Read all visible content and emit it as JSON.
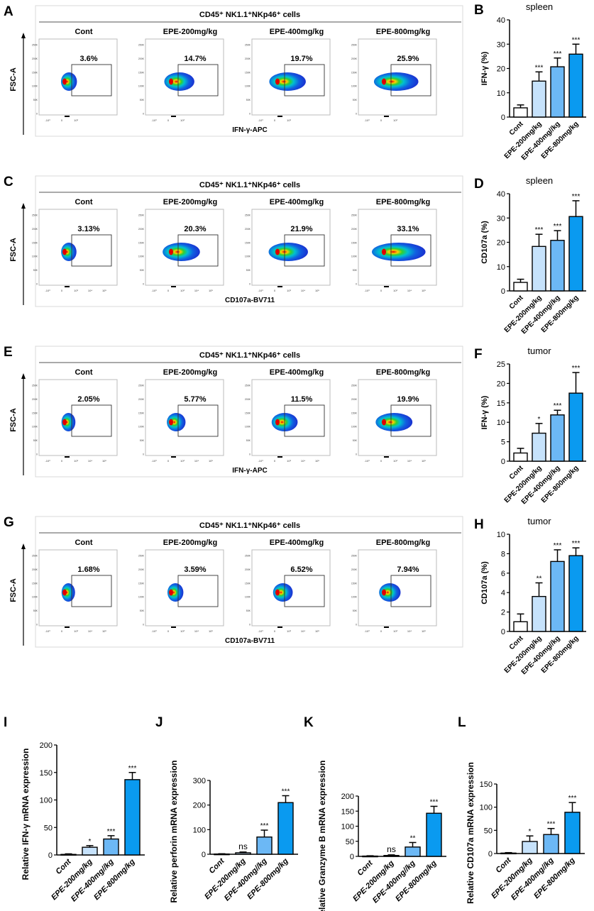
{
  "colors": {
    "cont": "#ffffff",
    "epe200": "#c6e2fb",
    "epe400": "#6cb8f5",
    "epe800": "#0a9af0"
  },
  "flow_panels": [
    {
      "letter": "A",
      "header": "CD45⁺ NK1.1⁺NKp46⁺ cells",
      "ylabel": "FSC-A",
      "xlabel": "IFN-γ-APC",
      "plots": [
        {
          "title": "Cont",
          "gate": "3.6%"
        },
        {
          "title": "EPE-200mg/kg",
          "gate": "14.7%"
        },
        {
          "title": "EPE-400mg/kg",
          "gate": "19.7%"
        },
        {
          "title": "EPE-800mg/kg",
          "gate": "25.9%"
        }
      ],
      "yticks": [
        "250K",
        "200K",
        "150K",
        "100K",
        "50K",
        "0"
      ],
      "xticks": [
        "-10³",
        "0",
        "10³"
      ]
    },
    {
      "letter": "C",
      "header": "CD45⁺ NK1.1⁺NKp46⁺ cells",
      "ylabel": "FSC-A",
      "xlabel": "CD107a-BV711",
      "plots": [
        {
          "title": "Cont",
          "gate": "3.13%"
        },
        {
          "title": "EPE-200mg/kg",
          "gate": "20.3%"
        },
        {
          "title": "EPE-400mg/kg",
          "gate": "21.9%"
        },
        {
          "title": "EPE-800mg/kg",
          "gate": "33.1%"
        }
      ],
      "yticks": [
        "250K",
        "200K",
        "150K",
        "100K",
        "50K",
        "0"
      ],
      "xticks": [
        "-10³",
        "0",
        "10³",
        "10⁴",
        "10⁵"
      ]
    },
    {
      "letter": "E",
      "header": "CD45⁺ NK1.1⁺NKp46⁺ cells",
      "ylabel": "FSC-A",
      "xlabel": "IFN-γ-APC",
      "plots": [
        {
          "title": "Cont",
          "gate": "2.05%"
        },
        {
          "title": "EPE-200mg/kg",
          "gate": "5.77%"
        },
        {
          "title": "EPE-400mg/kg",
          "gate": "11.5%"
        },
        {
          "title": "EPE-800mg/kg",
          "gate": "19.9%"
        }
      ],
      "yticks": [
        "250K",
        "200K",
        "150K",
        "100K",
        "50K",
        "0"
      ],
      "xticks": [
        "-10³",
        "0",
        "10³",
        "10⁴",
        "10⁵"
      ]
    },
    {
      "letter": "G",
      "header": "CD45⁺ NK1.1⁺NKp46⁺ cells",
      "ylabel": "FSC-A",
      "xlabel": "CD107a-BV711",
      "plots": [
        {
          "title": "Cont",
          "gate": "1.68%"
        },
        {
          "title": "EPE-200mg/kg",
          "gate": "3.59%"
        },
        {
          "title": "EPE-400mg/kg",
          "gate": "6.52%"
        },
        {
          "title": "EPE-800mg/kg",
          "gate": "7.94%"
        }
      ],
      "yticks": [
        "250K",
        "200K",
        "150K",
        "100K",
        "50K",
        "0"
      ],
      "xticks": [
        "-10³",
        "0",
        "10³",
        "10⁴",
        "10⁵"
      ]
    }
  ],
  "chart_data": [
    {
      "id": "B",
      "letter": "B",
      "type": "bar",
      "title": "spleen",
      "ylabel": "IFN-γ (%)",
      "ylim": [
        0,
        40
      ],
      "yticks": [
        0,
        10,
        20,
        30,
        40
      ],
      "categories": [
        "Cont",
        "EPE-200mg/kg",
        "EPE-400mg//kg",
        "EPE-800mg/kg"
      ],
      "values": [
        3.8,
        14.8,
        20.7,
        25.9
      ],
      "errors": [
        1.2,
        3.8,
        3.6,
        4.1
      ],
      "significance": [
        "",
        "***",
        "***",
        "***"
      ]
    },
    {
      "id": "D",
      "letter": "D",
      "type": "bar",
      "title": "spleen",
      "ylabel": "CD107a (%)",
      "ylim": [
        0,
        40
      ],
      "yticks": [
        0,
        10,
        20,
        30,
        40
      ],
      "categories": [
        "Cont",
        "EPE-200mg/kg",
        "EPE-400mg//kg",
        "EPE-800mg/kg"
      ],
      "values": [
        3.5,
        18.3,
        20.8,
        30.6
      ],
      "errors": [
        1.3,
        5.0,
        4.0,
        6.5
      ],
      "significance": [
        "",
        "***",
        "***",
        "***"
      ]
    },
    {
      "id": "F",
      "letter": "F",
      "type": "bar",
      "title": "tumor",
      "ylabel": "IFN-γ (%)",
      "ylim": [
        0,
        25
      ],
      "yticks": [
        0,
        5,
        10,
        15,
        20,
        25
      ],
      "categories": [
        "Cont",
        "EPE-200mg/kg",
        "EPE-400mg//kg",
        "EPE-800mg/kg"
      ],
      "values": [
        2.1,
        7.2,
        11.9,
        17.5
      ],
      "errors": [
        1.2,
        2.5,
        1.2,
        5.3
      ],
      "significance": [
        "",
        "*",
        "***",
        "***"
      ]
    },
    {
      "id": "H",
      "letter": "H",
      "type": "bar",
      "title": "tumor",
      "ylabel": "CD107a (%)",
      "ylim": [
        0,
        10
      ],
      "yticks": [
        0,
        2,
        4,
        6,
        8,
        10
      ],
      "categories": [
        "Cont",
        "EPE-200mg/kg",
        "EPE-400mg//kg",
        "EPE-800mg/kg"
      ],
      "values": [
        1.0,
        3.6,
        7.2,
        7.8
      ],
      "errors": [
        0.8,
        1.4,
        1.2,
        0.8
      ],
      "significance": [
        "",
        "**",
        "***",
        "***"
      ]
    },
    {
      "id": "I",
      "letter": "I",
      "type": "bar",
      "title": "",
      "ylabel": "Relative IFN-γ mRNA expression",
      "ylim": [
        0,
        200
      ],
      "yticks": [
        0,
        50,
        100,
        150,
        200
      ],
      "categories": [
        "Cont",
        "EPE-200mg/kg",
        "EPE-400mg//kg",
        "EPE-800mg/kg"
      ],
      "values": [
        1,
        14,
        29,
        137
      ],
      "errors": [
        1,
        3,
        6,
        13
      ],
      "significance": [
        "",
        "*",
        "***",
        "***"
      ]
    },
    {
      "id": "J",
      "letter": "J",
      "type": "bar",
      "title": "",
      "ylabel": "Relative perforin mRNA expression",
      "ylim": [
        0,
        300
      ],
      "yticks": [
        0,
        100,
        200,
        300
      ],
      "categories": [
        "Cont",
        "EPE-200mg/kg",
        "EPE-400mg//kg",
        "EPE-800mg/kg"
      ],
      "values": [
        1,
        6,
        70,
        210
      ],
      "errors": [
        1,
        3,
        28,
        28
      ],
      "significance": [
        "",
        "ns",
        "***",
        "***"
      ]
    },
    {
      "id": "K",
      "letter": "K",
      "type": "bar",
      "title": "",
      "ylabel": "Relative Granzyme B mRNA expression",
      "ylim": [
        0,
        200
      ],
      "yticks": [
        0,
        50,
        100,
        150,
        200
      ],
      "categories": [
        "Cont",
        "EPE-200mg/kg",
        "EPE-400mg//kg",
        "EPE-800mg/kg"
      ],
      "values": [
        1,
        3,
        31,
        143
      ],
      "errors": [
        1,
        2,
        15,
        23
      ],
      "significance": [
        "",
        "ns",
        "**",
        "***"
      ]
    },
    {
      "id": "L",
      "letter": "L",
      "type": "bar",
      "title": "",
      "ylabel": "Relative CD107a mRNA expression",
      "ylim": [
        0,
        150
      ],
      "yticks": [
        0,
        50,
        100,
        150
      ],
      "categories": [
        "Cont",
        "EPE-200mg/kg",
        "EPE-400mg//kg",
        "EPE-800mg/kg"
      ],
      "values": [
        1,
        26,
        41,
        89
      ],
      "errors": [
        1,
        12,
        13,
        21
      ],
      "significance": [
        "",
        "*",
        "***",
        "***"
      ]
    }
  ]
}
